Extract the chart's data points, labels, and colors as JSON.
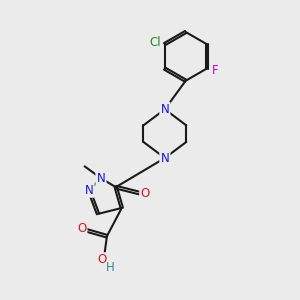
{
  "bg": "#ebebeb",
  "bc": "#1a1a1a",
  "lw": 1.5,
  "off": 0.05,
  "Nc": "#1414dd",
  "Oc": "#dd1414",
  "Fc": "#cc00cc",
  "Clc": "#228B22",
  "Hc": "#2a9090",
  "fs": 8.5,
  "xlim": [
    0,
    10
  ],
  "ylim": [
    0,
    10
  ]
}
